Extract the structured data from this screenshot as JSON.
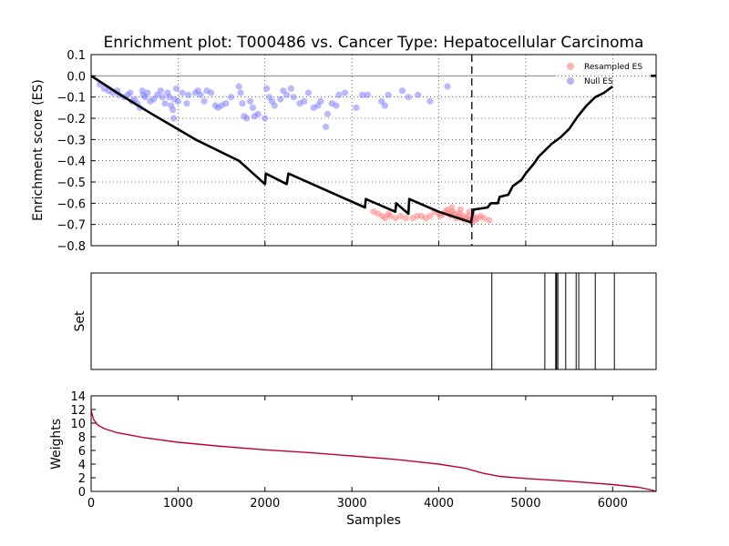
{
  "chart_data": [
    {
      "type": "line",
      "title": "Enrichment plot: T000486 vs. Cancer Type: Hepatocellular Carcinoma",
      "xlabel": "",
      "ylabel": "Enrichment score (ES)",
      "xlim": [
        0,
        6500
      ],
      "ylim": [
        -0.8,
        0.1
      ],
      "yticks": [
        "0.1",
        "0.0",
        "−0.1",
        "−0.2",
        "−0.3",
        "−0.4",
        "−0.5",
        "−0.6",
        "−0.7",
        "−0.8"
      ],
      "ytick_values": [
        0.1,
        0.0,
        -0.1,
        -0.2,
        -0.3,
        -0.4,
        -0.5,
        -0.6,
        -0.7,
        -0.8
      ],
      "grid": true,
      "legend": {
        "placement": "top-right",
        "entries": [
          "Resampled ES",
          "Null ES"
        ]
      },
      "colors": {
        "es_line": "#000000",
        "resampled": "#ff7f7f",
        "null": "#8080ff"
      },
      "vline_x": 4380,
      "series": [
        {
          "name": "",
          "points": [
            [
              0,
              0.0
            ],
            [
              300,
              -0.08
            ],
            [
              700,
              -0.18
            ],
            [
              1200,
              -0.3
            ],
            [
              1700,
              -0.4
            ],
            [
              2000,
              -0.51
            ],
            [
              2010,
              -0.46
            ],
            [
              2250,
              -0.51
            ],
            [
              2270,
              -0.46
            ],
            [
              2600,
              -0.52
            ],
            [
              3150,
              -0.62
            ],
            [
              3160,
              -0.58
            ],
            [
              3500,
              -0.64
            ],
            [
              3510,
              -0.6
            ],
            [
              3650,
              -0.65
            ],
            [
              3660,
              -0.58
            ],
            [
              4000,
              -0.64
            ],
            [
              4370,
              -0.69
            ],
            [
              4400,
              -0.63
            ],
            [
              4560,
              -0.62
            ],
            [
              4600,
              -0.6
            ],
            [
              4680,
              -0.6
            ],
            [
              4700,
              -0.57
            ],
            [
              4800,
              -0.56
            ],
            [
              4850,
              -0.52
            ],
            [
              4950,
              -0.49
            ],
            [
              5000,
              -0.46
            ],
            [
              5100,
              -0.41
            ],
            [
              5150,
              -0.38
            ],
            [
              5200,
              -0.36
            ],
            [
              5300,
              -0.32
            ],
            [
              5400,
              -0.29
            ],
            [
              5500,
              -0.25
            ],
            [
              5600,
              -0.19
            ],
            [
              5700,
              -0.14
            ],
            [
              5800,
              -0.1
            ],
            [
              5900,
              -0.08
            ],
            [
              6000,
              -0.05
            ]
          ]
        }
      ],
      "null_es": [
        {
          "x": 100,
          "y": -0.04
        },
        {
          "x": 150,
          "y": -0.06
        },
        {
          "x": 200,
          "y": -0.07
        },
        {
          "x": 250,
          "y": -0.08
        },
        {
          "x": 300,
          "y": -0.07
        },
        {
          "x": 320,
          "y": -0.09
        },
        {
          "x": 380,
          "y": -0.1
        },
        {
          "x": 420,
          "y": -0.09
        },
        {
          "x": 450,
          "y": -0.08
        },
        {
          "x": 470,
          "y": -0.12
        },
        {
          "x": 500,
          "y": -0.11
        },
        {
          "x": 530,
          "y": -0.13
        },
        {
          "x": 560,
          "y": -0.15
        },
        {
          "x": 590,
          "y": -0.07
        },
        {
          "x": 600,
          "y": -0.09
        },
        {
          "x": 620,
          "y": -0.1
        },
        {
          "x": 650,
          "y": -0.08
        },
        {
          "x": 680,
          "y": -0.12
        },
        {
          "x": 720,
          "y": -0.11
        },
        {
          "x": 760,
          "y": -0.09
        },
        {
          "x": 800,
          "y": -0.07
        },
        {
          "x": 820,
          "y": -0.1
        },
        {
          "x": 850,
          "y": -0.13
        },
        {
          "x": 880,
          "y": -0.08
        },
        {
          "x": 900,
          "y": -0.1
        },
        {
          "x": 920,
          "y": -0.14
        },
        {
          "x": 940,
          "y": -0.16
        },
        {
          "x": 960,
          "y": -0.11
        },
        {
          "x": 980,
          "y": -0.06
        },
        {
          "x": 950,
          "y": -0.2
        },
        {
          "x": 1000,
          "y": -0.12
        },
        {
          "x": 1050,
          "y": -0.08
        },
        {
          "x": 1100,
          "y": -0.13
        },
        {
          "x": 1120,
          "y": -0.09
        },
        {
          "x": 1200,
          "y": -0.08
        },
        {
          "x": 1230,
          "y": -0.07
        },
        {
          "x": 1260,
          "y": -0.09
        },
        {
          "x": 1300,
          "y": -0.12
        },
        {
          "x": 1330,
          "y": -0.07
        },
        {
          "x": 1380,
          "y": -0.08
        },
        {
          "x": 1430,
          "y": -0.14
        },
        {
          "x": 1460,
          "y": -0.15
        },
        {
          "x": 1500,
          "y": -0.14
        },
        {
          "x": 1550,
          "y": -0.13
        },
        {
          "x": 1610,
          "y": -0.1
        },
        {
          "x": 1700,
          "y": -0.05
        },
        {
          "x": 1720,
          "y": -0.08
        },
        {
          "x": 1740,
          "y": -0.13
        },
        {
          "x": 1760,
          "y": -0.19
        },
        {
          "x": 1790,
          "y": -0.2
        },
        {
          "x": 1830,
          "y": -0.12
        },
        {
          "x": 1860,
          "y": -0.15
        },
        {
          "x": 1880,
          "y": -0.19
        },
        {
          "x": 1920,
          "y": -0.18
        },
        {
          "x": 2000,
          "y": -0.2
        },
        {
          "x": 2020,
          "y": -0.06
        },
        {
          "x": 2050,
          "y": -0.1
        },
        {
          "x": 2080,
          "y": -0.12
        },
        {
          "x": 2110,
          "y": -0.14
        },
        {
          "x": 2180,
          "y": -0.11
        },
        {
          "x": 2210,
          "y": -0.07
        },
        {
          "x": 2250,
          "y": -0.09
        },
        {
          "x": 2300,
          "y": -0.06
        },
        {
          "x": 2330,
          "y": -0.1
        },
        {
          "x": 2400,
          "y": -0.13
        },
        {
          "x": 2450,
          "y": -0.12
        },
        {
          "x": 2500,
          "y": -0.08
        },
        {
          "x": 2560,
          "y": -0.15
        },
        {
          "x": 2610,
          "y": -0.14
        },
        {
          "x": 2640,
          "y": -0.12
        },
        {
          "x": 2700,
          "y": -0.24
        },
        {
          "x": 2720,
          "y": -0.18
        },
        {
          "x": 2770,
          "y": -0.13
        },
        {
          "x": 2820,
          "y": -0.14
        },
        {
          "x": 2850,
          "y": -0.09
        },
        {
          "x": 2920,
          "y": -0.08
        },
        {
          "x": 3050,
          "y": -0.15
        },
        {
          "x": 3120,
          "y": -0.09
        },
        {
          "x": 3180,
          "y": -0.09
        },
        {
          "x": 3340,
          "y": -0.12
        },
        {
          "x": 3380,
          "y": -0.14
        },
        {
          "x": 3420,
          "y": -0.09
        },
        {
          "x": 3580,
          "y": -0.07
        },
        {
          "x": 3650,
          "y": -0.1
        },
        {
          "x": 3760,
          "y": -0.09
        },
        {
          "x": 3900,
          "y": -0.12
        },
        {
          "x": 4100,
          "y": -0.05
        }
      ],
      "resampled_es": [
        {
          "x": 3250,
          "y": -0.64
        },
        {
          "x": 3300,
          "y": -0.65
        },
        {
          "x": 3350,
          "y": -0.66
        },
        {
          "x": 3380,
          "y": -0.67
        },
        {
          "x": 3420,
          "y": -0.65
        },
        {
          "x": 3440,
          "y": -0.66
        },
        {
          "x": 3500,
          "y": -0.67
        },
        {
          "x": 3560,
          "y": -0.66
        },
        {
          "x": 3620,
          "y": -0.67
        },
        {
          "x": 3700,
          "y": -0.67
        },
        {
          "x": 3750,
          "y": -0.66
        },
        {
          "x": 3800,
          "y": -0.66
        },
        {
          "x": 3850,
          "y": -0.67
        },
        {
          "x": 3900,
          "y": -0.66
        },
        {
          "x": 3950,
          "y": -0.64
        },
        {
          "x": 4000,
          "y": -0.65
        },
        {
          "x": 4020,
          "y": -0.66
        },
        {
          "x": 4050,
          "y": -0.65
        },
        {
          "x": 4080,
          "y": -0.64
        },
        {
          "x": 4100,
          "y": -0.63
        },
        {
          "x": 4120,
          "y": -0.65
        },
        {
          "x": 4140,
          "y": -0.66
        },
        {
          "x": 4160,
          "y": -0.64
        },
        {
          "x": 4180,
          "y": -0.65
        },
        {
          "x": 4200,
          "y": -0.67
        },
        {
          "x": 4220,
          "y": -0.66
        },
        {
          "x": 4240,
          "y": -0.65
        },
        {
          "x": 4260,
          "y": -0.67
        },
        {
          "x": 4280,
          "y": -0.66
        },
        {
          "x": 4300,
          "y": -0.68
        },
        {
          "x": 4320,
          "y": -0.67
        },
        {
          "x": 4340,
          "y": -0.66
        },
        {
          "x": 4360,
          "y": -0.68
        },
        {
          "x": 4380,
          "y": -0.69
        },
        {
          "x": 4390,
          "y": -0.67
        },
        {
          "x": 4400,
          "y": -0.66
        },
        {
          "x": 4420,
          "y": -0.68
        },
        {
          "x": 4450,
          "y": -0.67
        },
        {
          "x": 4480,
          "y": -0.66
        },
        {
          "x": 4520,
          "y": -0.67
        },
        {
          "x": 4580,
          "y": -0.68
        },
        {
          "x": 4150,
          "y": -0.62
        },
        {
          "x": 4250,
          "y": -0.63
        },
        {
          "x": 4350,
          "y": -0.64
        }
      ]
    },
    {
      "type": "other",
      "title": "",
      "xlabel": "",
      "ylabel": "Set",
      "xlim": [
        0,
        6500
      ],
      "set_positions": [
        4610,
        5220,
        5350,
        5370,
        5460,
        5580,
        5610,
        5800,
        6020
      ]
    },
    {
      "type": "line",
      "title": "",
      "xlabel": "Samples",
      "ylabel": "Weights",
      "xlim": [
        0,
        6500
      ],
      "ylim": [
        0,
        14
      ],
      "xticks": [
        "0",
        "1000",
        "2000",
        "3000",
        "4000",
        "5000",
        "6000"
      ],
      "xtick_values": [
        0,
        1000,
        2000,
        3000,
        4000,
        5000,
        6000
      ],
      "yticks": [
        "0",
        "2",
        "4",
        "6",
        "8",
        "10",
        "12",
        "14"
      ],
      "ytick_values": [
        0,
        2,
        4,
        6,
        8,
        10,
        12,
        14
      ],
      "colors": {
        "weights_line": "#c00030"
      },
      "series": [
        {
          "name": "",
          "points": [
            [
              0,
              11.8
            ],
            [
              30,
              10.5
            ],
            [
              80,
              9.7
            ],
            [
              150,
              9.2
            ],
            [
              300,
              8.6
            ],
            [
              600,
              7.9
            ],
            [
              1000,
              7.2
            ],
            [
              1500,
              6.6
            ],
            [
              2000,
              6.1
            ],
            [
              2500,
              5.7
            ],
            [
              3000,
              5.2
            ],
            [
              3500,
              4.7
            ],
            [
              4000,
              4.0
            ],
            [
              4300,
              3.4
            ],
            [
              4500,
              2.7
            ],
            [
              4700,
              2.2
            ],
            [
              5000,
              1.9
            ],
            [
              5500,
              1.5
            ],
            [
              6000,
              1.0
            ],
            [
              6300,
              0.6
            ],
            [
              6450,
              0.2
            ],
            [
              6500,
              0.0
            ]
          ]
        }
      ]
    }
  ]
}
